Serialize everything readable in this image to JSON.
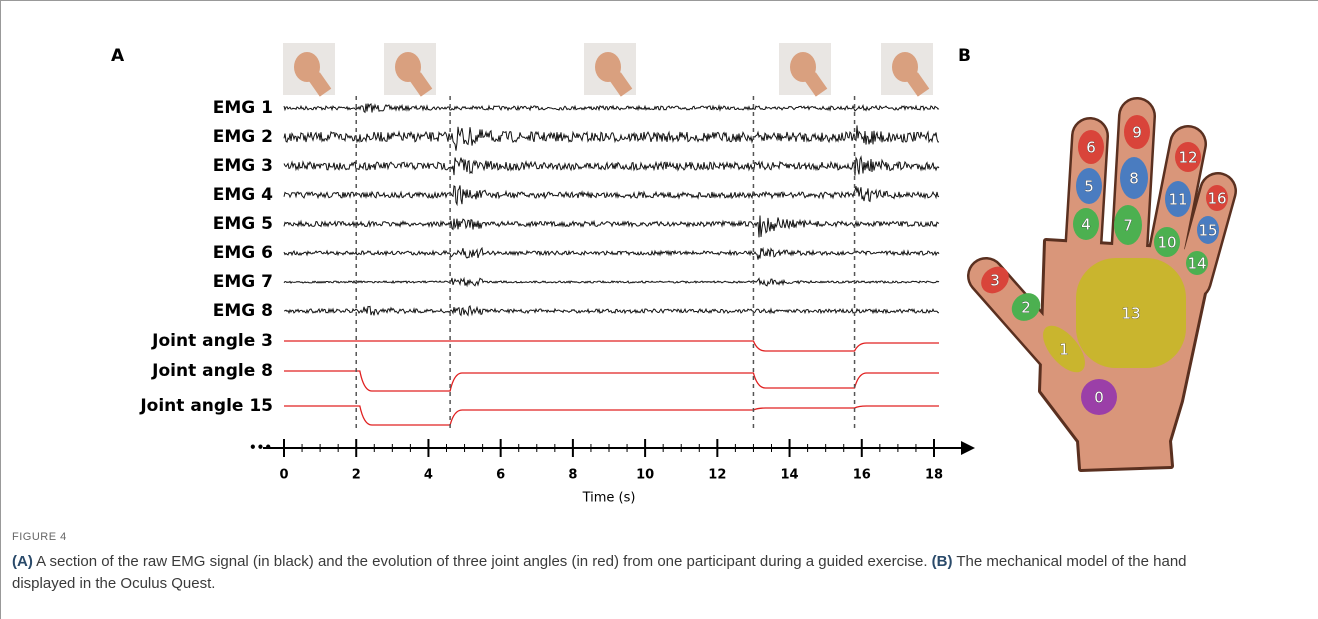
{
  "panel_a": {
    "label": "A",
    "rows": [
      "EMG 1",
      "EMG 2",
      "EMG 3",
      "EMG 4",
      "EMG 5",
      "EMG 6",
      "EMG 7",
      "EMG 8",
      "Joint angle 3",
      "Joint angle 8",
      "Joint angle 15"
    ],
    "axis": {
      "ticks": [
        0,
        2,
        4,
        6,
        8,
        10,
        12,
        14,
        16,
        18
      ],
      "title": "Time (s)"
    }
  },
  "panel_b": {
    "label": "B",
    "segments": [
      "0",
      "1",
      "2",
      "3",
      "4",
      "5",
      "6",
      "7",
      "8",
      "9",
      "10",
      "11",
      "12",
      "13",
      "14",
      "15",
      "16"
    ]
  },
  "caption": {
    "figure_label": "FIGURE 4",
    "parts": [
      {
        "tag": "(A)",
        "text": " A section of the raw EMG signal (in black) and the evolution of three joint angles (in red) from one participant during a guided exercise. "
      },
      {
        "tag": "(B)",
        "text": " The mechanical model of the hand displayed in the Oculus Quest."
      }
    ]
  }
}
